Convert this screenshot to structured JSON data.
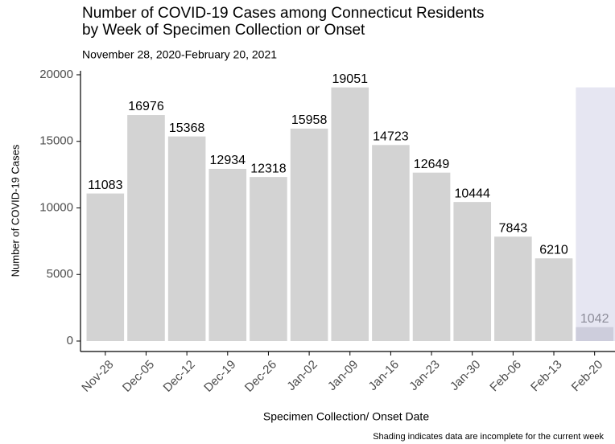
{
  "chart_data": {
    "type": "bar",
    "title": [
      "Number of COVID-19 Cases among Connecticut Residents",
      "by Week of Specimen Collection or Onset"
    ],
    "subtitle": "November 28, 2020-February 20, 2021",
    "x_label": "Specimen Collection/ Onset Date",
    "y_label": "Number of COVID-19 Cases",
    "note": "Shading indicates data are incomplete for the current week",
    "categories": [
      "Nov-28",
      "Dec-05",
      "Dec-12",
      "Dec-19",
      "Dec-26",
      "Jan-02",
      "Jan-09",
      "Jan-16",
      "Jan-23",
      "Jan-30",
      "Feb-06",
      "Feb-13",
      "Feb-20"
    ],
    "values": [
      11083,
      16976,
      15368,
      12934,
      12318,
      15958,
      19051,
      14723,
      12649,
      10444,
      7843,
      6210,
      1042
    ],
    "colors": [
      "#d3d3d3",
      "#d3d3d3",
      "#d3d3d3",
      "#d3d3d3",
      "#d3d3d3",
      "#d3d3d3",
      "#d3d3d3",
      "#d3d3d3",
      "#d3d3d3",
      "#d3d3d3",
      "#d3d3d3",
      "#d3d3d3",
      "#cdcddc"
    ],
    "value_label_colors": [
      "#000000",
      "#000000",
      "#000000",
      "#000000",
      "#000000",
      "#000000",
      "#000000",
      "#000000",
      "#000000",
      "#000000",
      "#000000",
      "#000000",
      "#8c8c99"
    ],
    "shade_color": "#e6e6f2",
    "ylim": [
      -785,
      20300
    ],
    "yticks": [
      0,
      5000,
      10000,
      15000,
      20000
    ],
    "grid": false
  }
}
